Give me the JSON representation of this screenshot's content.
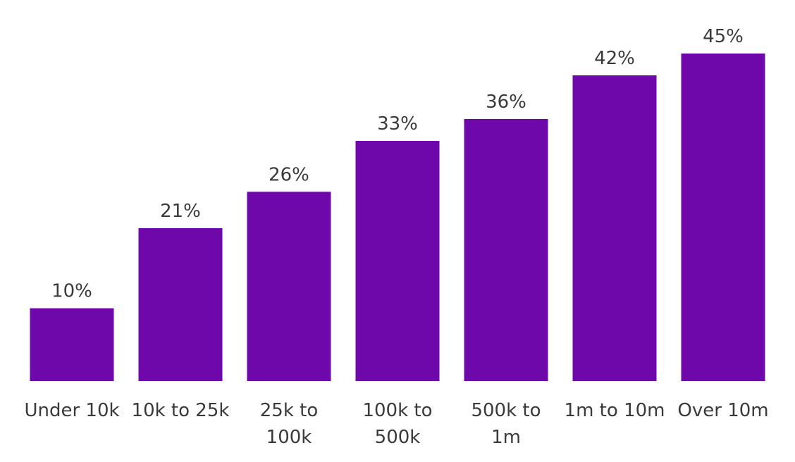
{
  "chart_data": {
    "type": "bar",
    "title": "",
    "xlabel": "",
    "ylabel": "",
    "categories": [
      "Under 10k",
      "10k to 25k",
      "25k to 100k",
      "100k to 500k",
      "500k to 1m",
      "1m to 10m",
      "Over 10m"
    ],
    "category_lines": [
      [
        "Under 10k"
      ],
      [
        "10k to 25k"
      ],
      [
        "25k to",
        "100k"
      ],
      [
        "100k to",
        "500k"
      ],
      [
        "500k to",
        "1m"
      ],
      [
        "1m to 10m"
      ],
      [
        "Over 10m"
      ]
    ],
    "values": [
      10,
      21,
      26,
      33,
      36,
      42,
      45
    ],
    "value_labels": [
      "10%",
      "21%",
      "26%",
      "33%",
      "36%",
      "42%",
      "45%"
    ],
    "unit": "%",
    "ylim": [
      0,
      45
    ],
    "grid": false,
    "legend": "none",
    "bar_color": "#6f08aa",
    "label_color": "#3a3a3a"
  }
}
